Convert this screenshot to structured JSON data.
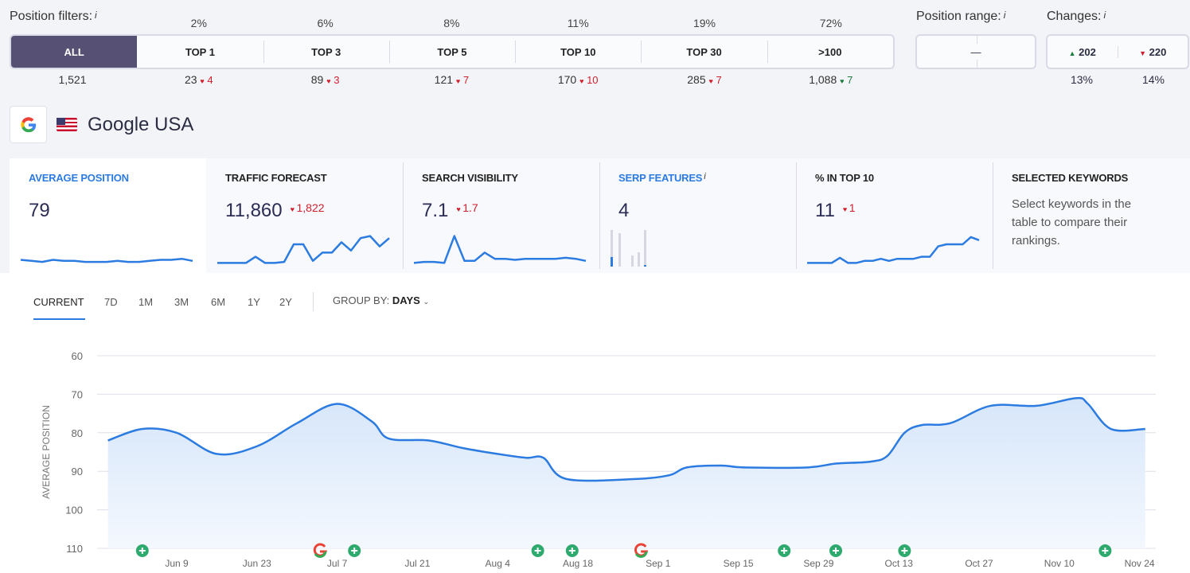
{
  "filters": {
    "label": "Position filters:",
    "info": "i",
    "items": [
      {
        "label": "ALL",
        "pct": "",
        "count": "1,521",
        "change": "",
        "dir": ""
      },
      {
        "label": "TOP 1",
        "pct": "2%",
        "count": "23",
        "change": "4",
        "dir": "down"
      },
      {
        "label": "TOP 3",
        "pct": "6%",
        "count": "89",
        "change": "3",
        "dir": "down"
      },
      {
        "label": "TOP 5",
        "pct": "8%",
        "count": "121",
        "change": "7",
        "dir": "down"
      },
      {
        "label": "TOP 10",
        "pct": "11%",
        "count": "170",
        "change": "10",
        "dir": "down"
      },
      {
        "label": "TOP 30",
        "pct": "19%",
        "count": "285",
        "change": "7",
        "dir": "down"
      },
      {
        "label": ">100",
        "pct": "72%",
        "count": "1,088",
        "change": "7",
        "dir": "up"
      }
    ]
  },
  "range": {
    "label": "Position range:",
    "info": "i",
    "value": "—"
  },
  "changes": {
    "label": "Changes:",
    "info": "i",
    "up": "202",
    "down": "220",
    "up_pct": "13%",
    "down_pct": "14%"
  },
  "engine": {
    "name": "Google USA",
    "icon": "google-icon",
    "flag": "us-flag-icon"
  },
  "cards": [
    {
      "title": "AVERAGE POSITION",
      "value": "79",
      "delta": "",
      "spark": [
        5,
        4,
        3,
        5,
        4,
        4,
        3,
        3,
        3,
        4,
        3,
        3,
        4,
        5,
        5,
        6,
        4
      ]
    },
    {
      "title": "TRAFFIC FORECAST",
      "value": "11,860",
      "delta": "1,822",
      "spark": [
        2,
        2,
        2,
        2,
        8,
        2,
        2,
        3,
        20,
        20,
        4,
        12,
        12,
        22,
        14,
        26,
        28,
        18,
        26
      ]
    },
    {
      "title": "SEARCH VISIBILITY",
      "value": "7.1",
      "delta": "1.7",
      "spark": [
        2,
        3,
        3,
        2,
        28,
        4,
        4,
        12,
        6,
        6,
        5,
        6,
        6,
        6,
        6,
        7,
        6,
        4
      ]
    },
    {
      "title": "SERP FEATURES",
      "value": "4",
      "info": "i",
      "bars": [
        {
          "total": 46,
          "fill": 12
        },
        {
          "total": 42,
          "fill": 0
        },
        {
          "total": 14,
          "fill": 0
        },
        {
          "total": 18,
          "fill": 0
        },
        {
          "total": 46,
          "fill": 2
        }
      ]
    },
    {
      "title": "% IN TOP 10",
      "value": "11",
      "delta": "1",
      "spark": [
        2,
        2,
        2,
        2,
        7,
        2,
        2,
        4,
        4,
        6,
        4,
        6,
        6,
        6,
        8,
        8,
        18,
        20,
        20,
        20,
        27,
        24
      ]
    },
    {
      "title": "SELECTED KEYWORDS",
      "text": "Select keywords in the table to compare their rankings."
    }
  ],
  "periods": [
    "CURRENT",
    "7D",
    "1M",
    "3M",
    "6M",
    "1Y",
    "2Y"
  ],
  "selected_period": "CURRENT",
  "group_by": {
    "label": "GROUP BY:",
    "value": "DAYS"
  },
  "chart_data": {
    "type": "area",
    "ylabel": "AVERAGE POSITION",
    "ylim": [
      60,
      110
    ],
    "y_inverted": true,
    "yticks": [
      60,
      70,
      80,
      90,
      100,
      110
    ],
    "xticks": [
      "Jun 9",
      "Jun 23",
      "Jul 7",
      "Jul 21",
      "Aug 4",
      "Aug 18",
      "Sep 1",
      "Sep 15",
      "Sep 29",
      "Oct 13",
      "Oct 27",
      "Nov 10",
      "Nov 24"
    ],
    "points": [
      [
        "May 28",
        82
      ],
      [
        "Jun 3",
        79
      ],
      [
        "Jun 9",
        80
      ],
      [
        "Jun 16",
        85.5
      ],
      [
        "Jun 23",
        83.5
      ],
      [
        "Jun 30",
        77.5
      ],
      [
        "Jul 7",
        72.5
      ],
      [
        "Jul 13",
        77
      ],
      [
        "Jul 16",
        81.5
      ],
      [
        "Jul 23",
        82
      ],
      [
        "Jul 29",
        84
      ],
      [
        "Aug 4",
        85.5
      ],
      [
        "Aug 9",
        86.5
      ],
      [
        "Aug 12",
        86.5
      ],
      [
        "Aug 16",
        92
      ],
      [
        "Aug 28",
        92
      ],
      [
        "Sep 3",
        91
      ],
      [
        "Sep 6",
        89
      ],
      [
        "Sep 12",
        88.5
      ],
      [
        "Sep 16",
        89
      ],
      [
        "Sep 27",
        89
      ],
      [
        "Oct 2",
        88
      ],
      [
        "Oct 8",
        87.5
      ],
      [
        "Oct 11",
        86
      ],
      [
        "Oct 14",
        80
      ],
      [
        "Oct 17",
        78
      ],
      [
        "Oct 22",
        77.5
      ],
      [
        "Oct 29",
        73
      ],
      [
        "Nov 6",
        73
      ],
      [
        "Nov 13",
        71
      ],
      [
        "Nov 15",
        72.5
      ],
      [
        "Nov 19",
        79
      ],
      [
        "Nov 25",
        79
      ]
    ],
    "color": "#2c7be0",
    "events": [
      {
        "date": "Jun 3",
        "type": "plus"
      },
      {
        "date": "Jul 4",
        "type": "google"
      },
      {
        "date": "Jul 10",
        "type": "plus"
      },
      {
        "date": "Aug 11",
        "type": "plus"
      },
      {
        "date": "Aug 17",
        "type": "plus"
      },
      {
        "date": "Aug 29",
        "type": "google"
      },
      {
        "date": "Sep 23",
        "type": "plus"
      },
      {
        "date": "Oct 2",
        "type": "plus"
      },
      {
        "date": "Oct 14",
        "type": "plus"
      },
      {
        "date": "Nov 18",
        "type": "plus"
      }
    ]
  }
}
